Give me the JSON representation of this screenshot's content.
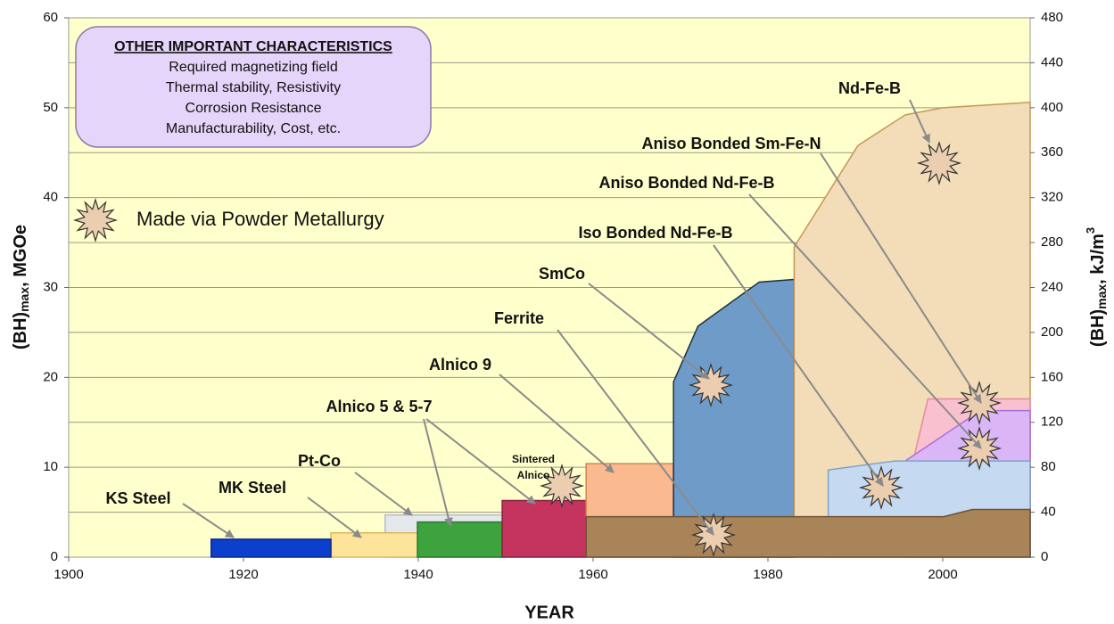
{
  "chart_data": {
    "type": "area",
    "xlabel": "YEAR",
    "ylabel": {
      "main": "(BH)",
      "sub": "max",
      "unit": ", MGOe"
    },
    "y2label": {
      "main": "(BH)",
      "sub": "max",
      "unit": ", kJ/m",
      "sup": "3"
    },
    "xlim": [
      1900,
      2010
    ],
    "xticks": [
      1900,
      1920,
      1940,
      1960,
      1980,
      2000
    ],
    "ylim": [
      0,
      60
    ],
    "yticks": [
      0,
      10,
      20,
      30,
      40,
      50,
      60
    ],
    "y2lim": [
      0,
      480
    ],
    "y2ticks": [
      0,
      40,
      80,
      120,
      160,
      200,
      240,
      280,
      320,
      360,
      400,
      440,
      480
    ],
    "grid": true,
    "background": "#ffffcc",
    "info_box": {
      "title": "OTHER IMPORTANT CHARACTERISTICS",
      "lines": [
        "Required magnetizing field",
        "Thermal stability, Resistivity",
        "Corrosion Resistance",
        "Manufacturability, Cost, etc."
      ]
    },
    "legend_note": "Made via Powder Metallurgy",
    "annotations": [
      "KS Steel",
      "MK Steel",
      "Pt-Co",
      "Alnico 5 & 5-7",
      "Alnico 9",
      "Ferrite",
      "SmCo",
      "Iso Bonded Nd-Fe-B",
      "Aniso Bonded Nd-Fe-B",
      "Aniso Bonded Sm-Fe-N",
      "Nd-Fe-B"
    ],
    "small_annotation": [
      "Sintered",
      "Alnico"
    ],
    "series": [
      {
        "color": "#e4e7ec",
        "stroke": "#b9bcc2",
        "x": [
          1936.2,
          1950
        ],
        "values": [
          4.7,
          4.7
        ]
      },
      {
        "color": "#fde49a",
        "stroke": "#d9b85e",
        "x": [
          1930,
          1940
        ],
        "values": [
          2.7,
          2.7
        ]
      },
      {
        "color": "#0b3fcc",
        "stroke": "#0a2d8a",
        "x": [
          1916.3,
          1930
        ],
        "values": [
          2,
          2
        ]
      },
      {
        "color": "#3ea33e",
        "stroke": "#2a7a2a",
        "x": [
          1939.9,
          1949.6
        ],
        "values": [
          3.9,
          3.9
        ]
      },
      {
        "color": "#c4345f",
        "stroke": "#8a1f40",
        "x": [
          1949.6,
          1959.2
        ],
        "values": [
          6.3,
          6.3
        ]
      },
      {
        "color": "#fbb98f",
        "stroke": "#d08550",
        "x": [
          1959.2,
          1969.2
        ],
        "values": [
          10.4,
          10.4
        ]
      },
      {
        "color": "#6f9bc9",
        "stroke": "#1d2e44",
        "x": [
          1969.2,
          1972,
          1979,
          1983
        ],
        "values": [
          19.5,
          25.7,
          30.6,
          30.9
        ]
      },
      {
        "color": "#f2ddb8",
        "stroke": "#c8955a",
        "x": [
          1983,
          1990.3,
          1995.7,
          2000,
          2010
        ],
        "values": [
          34.5,
          45.8,
          49.2,
          50,
          50.6
        ]
      },
      {
        "color": "#f9c1d0",
        "stroke": "#e68aa2",
        "x": [
          1996.6,
          1998.3,
          2010
        ],
        "values": [
          10.7,
          17.6,
          17.6
        ]
      },
      {
        "color": "#dab6f6",
        "stroke": "#a870d8",
        "x": [
          1995.7,
          2004.3,
          2010
        ],
        "values": [
          10.7,
          16.3,
          16.3
        ]
      },
      {
        "color": "#c5daf0",
        "stroke": "#7da3c8",
        "x": [
          1986.9,
          1994.5,
          2010
        ],
        "values": [
          9.7,
          10.7,
          10.7
        ]
      },
      {
        "color": "#a98458",
        "stroke": "#6e5232",
        "x": [
          1959.2,
          2000.1,
          2003.4,
          2010
        ],
        "values": [
          4.5,
          4.5,
          5.3,
          5.3
        ]
      }
    ]
  }
}
